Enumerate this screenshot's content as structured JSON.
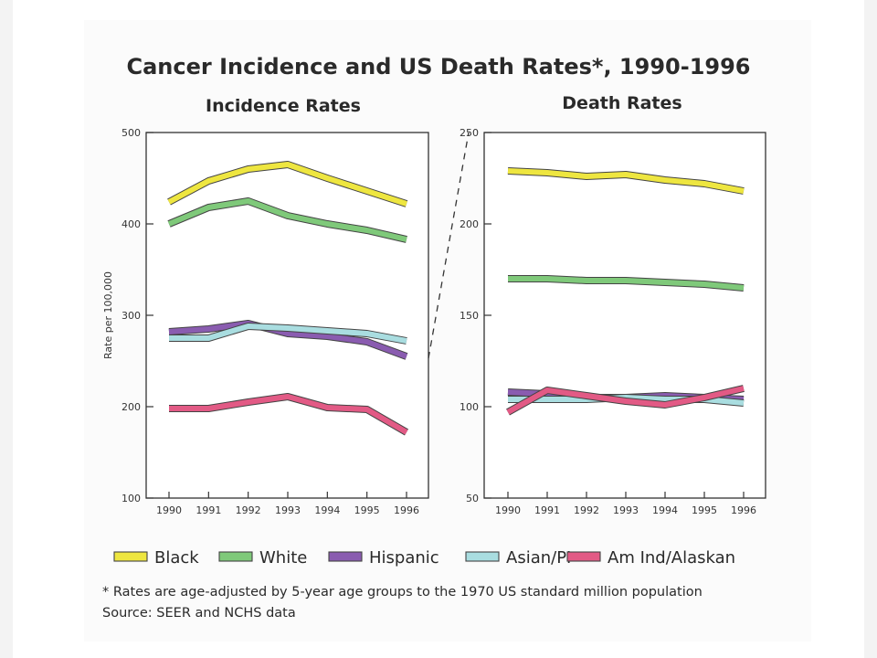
{
  "title": "Cancer Incidence and US Death Rates*, 1990-1996",
  "footnote": "* Rates are age-adjusted by 5-year age groups to the 1970 US standard million population",
  "source": "Source: SEER and NCHS data",
  "colors": {
    "Black": "#eee640",
    "White": "#7fc97a",
    "Hispanic": "#8a5cb0",
    "Asian/PI": "#a9dde0",
    "Am Ind/Alaskan": "#e25a85"
  },
  "chart_data": [
    {
      "type": "line",
      "title": "Incidence Rates",
      "xlabel": "",
      "ylabel": "Rate per 100,000",
      "x": [
        1990,
        1991,
        1992,
        1993,
        1994,
        1995,
        1996
      ],
      "x_tick_labels": [
        "1990",
        "1991",
        "1992",
        "1993",
        "1994",
        "1995",
        "1996"
      ],
      "ylim": [
        100,
        500
      ],
      "y_ticks": [
        100,
        200,
        300,
        400,
        500
      ],
      "y_tick_labels": [
        "100",
        "200",
        "300",
        "400",
        "500"
      ],
      "grid": false,
      "legend": "bottom",
      "series": [
        {
          "name": "Black",
          "values": [
            424,
            447,
            460,
            465,
            450,
            436,
            422
          ]
        },
        {
          "name": "White",
          "values": [
            400,
            418,
            425,
            409,
            400,
            393,
            383
          ]
        },
        {
          "name": "Hispanic",
          "values": [
            282,
            285,
            291,
            280,
            277,
            271,
            255
          ]
        },
        {
          "name": "Asian/PI",
          "values": [
            275,
            275,
            288,
            286,
            283,
            280,
            272
          ]
        },
        {
          "name": "Am Ind/Alaskan",
          "values": [
            198,
            198,
            205,
            211,
            199,
            197,
            172
          ]
        }
      ]
    },
    {
      "type": "line",
      "title": "Death Rates",
      "xlabel": "",
      "ylabel": "",
      "x": [
        1990,
        1991,
        1992,
        1993,
        1994,
        1995,
        1996
      ],
      "x_tick_labels": [
        "1990",
        "1991",
        "1992",
        "1993",
        "1994",
        "1995",
        "1996"
      ],
      "ylim": [
        50,
        250
      ],
      "y_ticks": [
        50,
        100,
        150,
        200,
        250
      ],
      "y_tick_labels": [
        "50",
        "100",
        "150",
        "200",
        "250"
      ],
      "grid": false,
      "legend": "bottom",
      "series": [
        {
          "name": "Black",
          "values": [
            229,
            228,
            226,
            227,
            224,
            222,
            218
          ]
        },
        {
          "name": "White",
          "values": [
            170,
            170,
            169,
            169,
            168,
            167,
            165
          ]
        },
        {
          "name": "Hispanic",
          "values": [
            108,
            107,
            105,
            105,
            106,
            105,
            104
          ]
        },
        {
          "name": "Asian/PI",
          "values": [
            104,
            104,
            104,
            105,
            104,
            104,
            102
          ]
        },
        {
          "name": "Am Ind/Alaskan",
          "values": [
            97,
            109,
            106,
            103,
            101,
            105,
            110
          ]
        }
      ]
    }
  ]
}
